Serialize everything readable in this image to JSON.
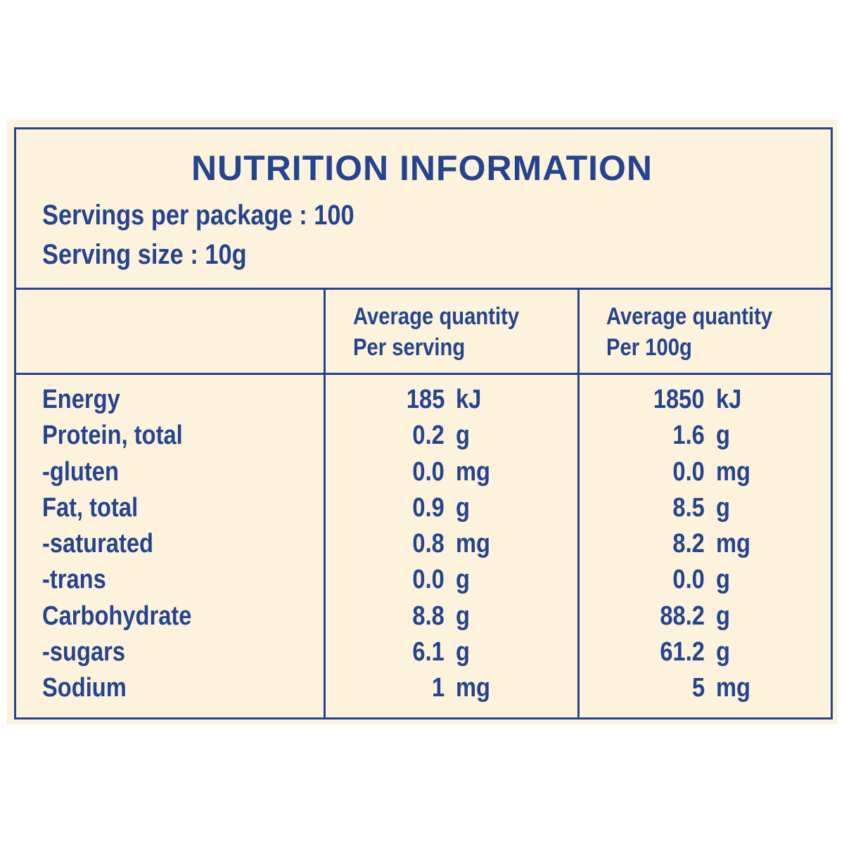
{
  "title": "NUTRITION INFORMATION",
  "servings_per_package": "Servings per package : 100",
  "serving_size": "Serving size : 10g",
  "columns": {
    "per_serving": [
      "Average quantity",
      "Per serving"
    ],
    "per_100g": [
      "Average quantity",
      "Per 100g"
    ]
  },
  "rows": [
    {
      "name": "Energy",
      "serving": "185",
      "serving_unit": "kJ",
      "per100": "1850",
      "per100_unit": "kJ"
    },
    {
      "name": "Protein, total",
      "serving": "0.2",
      "serving_unit": "g",
      "per100": "1.6",
      "per100_unit": "g"
    },
    {
      "name": "-gluten",
      "serving": "0.0",
      "serving_unit": "mg",
      "per100": "0.0",
      "per100_unit": "mg"
    },
    {
      "name": "Fat, total",
      "serving": "0.9",
      "serving_unit": "g",
      "per100": "8.5",
      "per100_unit": "g"
    },
    {
      "name": "-saturated",
      "serving": "0.8",
      "serving_unit": "mg",
      "per100": "8.2",
      "per100_unit": "mg"
    },
    {
      "name": "-trans",
      "serving": "0.0",
      "serving_unit": "g",
      "per100": "0.0",
      "per100_unit": "g"
    },
    {
      "name": "Carbohydrate",
      "serving": "8.8",
      "serving_unit": "g",
      "per100": "88.2",
      "per100_unit": "g"
    },
    {
      "name": "-sugars",
      "serving": "6.1",
      "serving_unit": "g",
      "per100": "61.2",
      "per100_unit": "g"
    },
    {
      "name": "Sodium",
      "serving": "1",
      "serving_unit": "mg",
      "per100": "5",
      "per100_unit": "mg"
    }
  ],
  "colors": {
    "ink": "#24448f",
    "background": "#fdf3dc"
  }
}
